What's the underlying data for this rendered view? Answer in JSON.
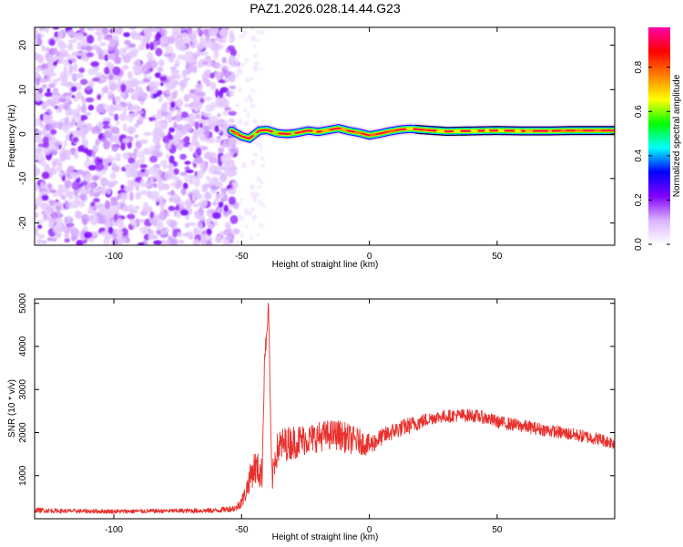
{
  "title": "PAZ1.2026.028.14.44.G23",
  "chart_data": [
    {
      "type": "heatmap",
      "name": "spectrogram",
      "xlabel": "Height of straight line (km)",
      "ylabel": "Frequency (Hz)",
      "xlim": [
        -131,
        96
      ],
      "ylim": [
        -25,
        24
      ],
      "xticks": [
        -100,
        -50,
        0,
        50
      ],
      "yticks": [
        20,
        10,
        0,
        -10,
        -20
      ],
      "colorbar": {
        "label": "Normalized spectral amplitude",
        "range": [
          0,
          0.98
        ],
        "ticks": [
          0.0,
          0.2,
          0.4,
          0.6,
          0.8
        ],
        "colors": [
          "#ffffff",
          "#d9b3ff",
          "#8000ff",
          "#0000ff",
          "#00ffff",
          "#00ff00",
          "#ffff00",
          "#ff8000",
          "#ff0000",
          "#ff00aa"
        ]
      },
      "noise_region": {
        "x_range": [
          -131,
          -52
        ],
        "amplitude": 0.1
      },
      "signal_track": {
        "x": [
          -54,
          -50,
          -47,
          -43,
          -40,
          -36,
          -32,
          -28,
          -24,
          -20,
          -16,
          -12,
          -8,
          -4,
          0,
          4,
          8,
          12,
          16,
          20,
          30,
          40,
          50,
          60,
          70,
          80,
          96
        ],
        "frequency": [
          0.8,
          -0.5,
          -1.0,
          0.8,
          0.9,
          0.2,
          0.0,
          0.3,
          0.8,
          0.5,
          0.9,
          1.3,
          0.7,
          0.3,
          -0.3,
          0.1,
          0.6,
          1.0,
          1.2,
          1.0,
          0.6,
          0.7,
          0.8,
          0.7,
          0.7,
          0.8,
          0.8
        ],
        "amplitude": 0.9
      }
    },
    {
      "type": "line",
      "name": "snr",
      "xlabel": "Height of straight line (km)",
      "ylabel": "SNR (10 * v/v)",
      "xlim": [
        -131,
        96
      ],
      "ylim": [
        0,
        5100
      ],
      "xticks": [
        -100,
        -50,
        0,
        50
      ],
      "yticks": [
        1000,
        2000,
        3000,
        4000,
        5000
      ],
      "color": "#e8302c",
      "series": [
        {
          "name": "SNR",
          "x": [
            -131,
            -120,
            -100,
            -80,
            -60,
            -52,
            -49,
            -47,
            -45,
            -43,
            -42,
            -41,
            -40,
            -39.5,
            -39,
            -38.5,
            -38,
            -37,
            -36,
            -35,
            -32,
            -28,
            -24,
            -20,
            -16,
            -12,
            -8,
            -4,
            0,
            5,
            10,
            15,
            20,
            25,
            30,
            35,
            40,
            45,
            50,
            60,
            70,
            80,
            90,
            96
          ],
          "y": [
            200,
            180,
            170,
            180,
            190,
            250,
            500,
            900,
            1200,
            1100,
            1000,
            3800,
            4300,
            5100,
            3500,
            1600,
            900,
            1400,
            1600,
            1700,
            1750,
            1800,
            1850,
            1900,
            1950,
            1950,
            1850,
            1800,
            1700,
            1900,
            2050,
            2150,
            2250,
            2350,
            2380,
            2400,
            2400,
            2350,
            2250,
            2150,
            2050,
            1950,
            1850,
            1750
          ],
          "noise_amplitude": [
            60,
            50,
            50,
            50,
            60,
            80,
            200,
            300,
            400,
            400,
            400,
            200,
            200,
            0,
            200,
            300,
            300,
            400,
            400,
            400,
            400,
            400,
            350,
            350,
            350,
            350,
            350,
            300,
            250,
            200,
            200,
            200,
            180,
            150,
            150,
            150,
            150,
            150,
            150,
            150,
            150,
            150,
            150,
            150
          ]
        }
      ]
    }
  ]
}
